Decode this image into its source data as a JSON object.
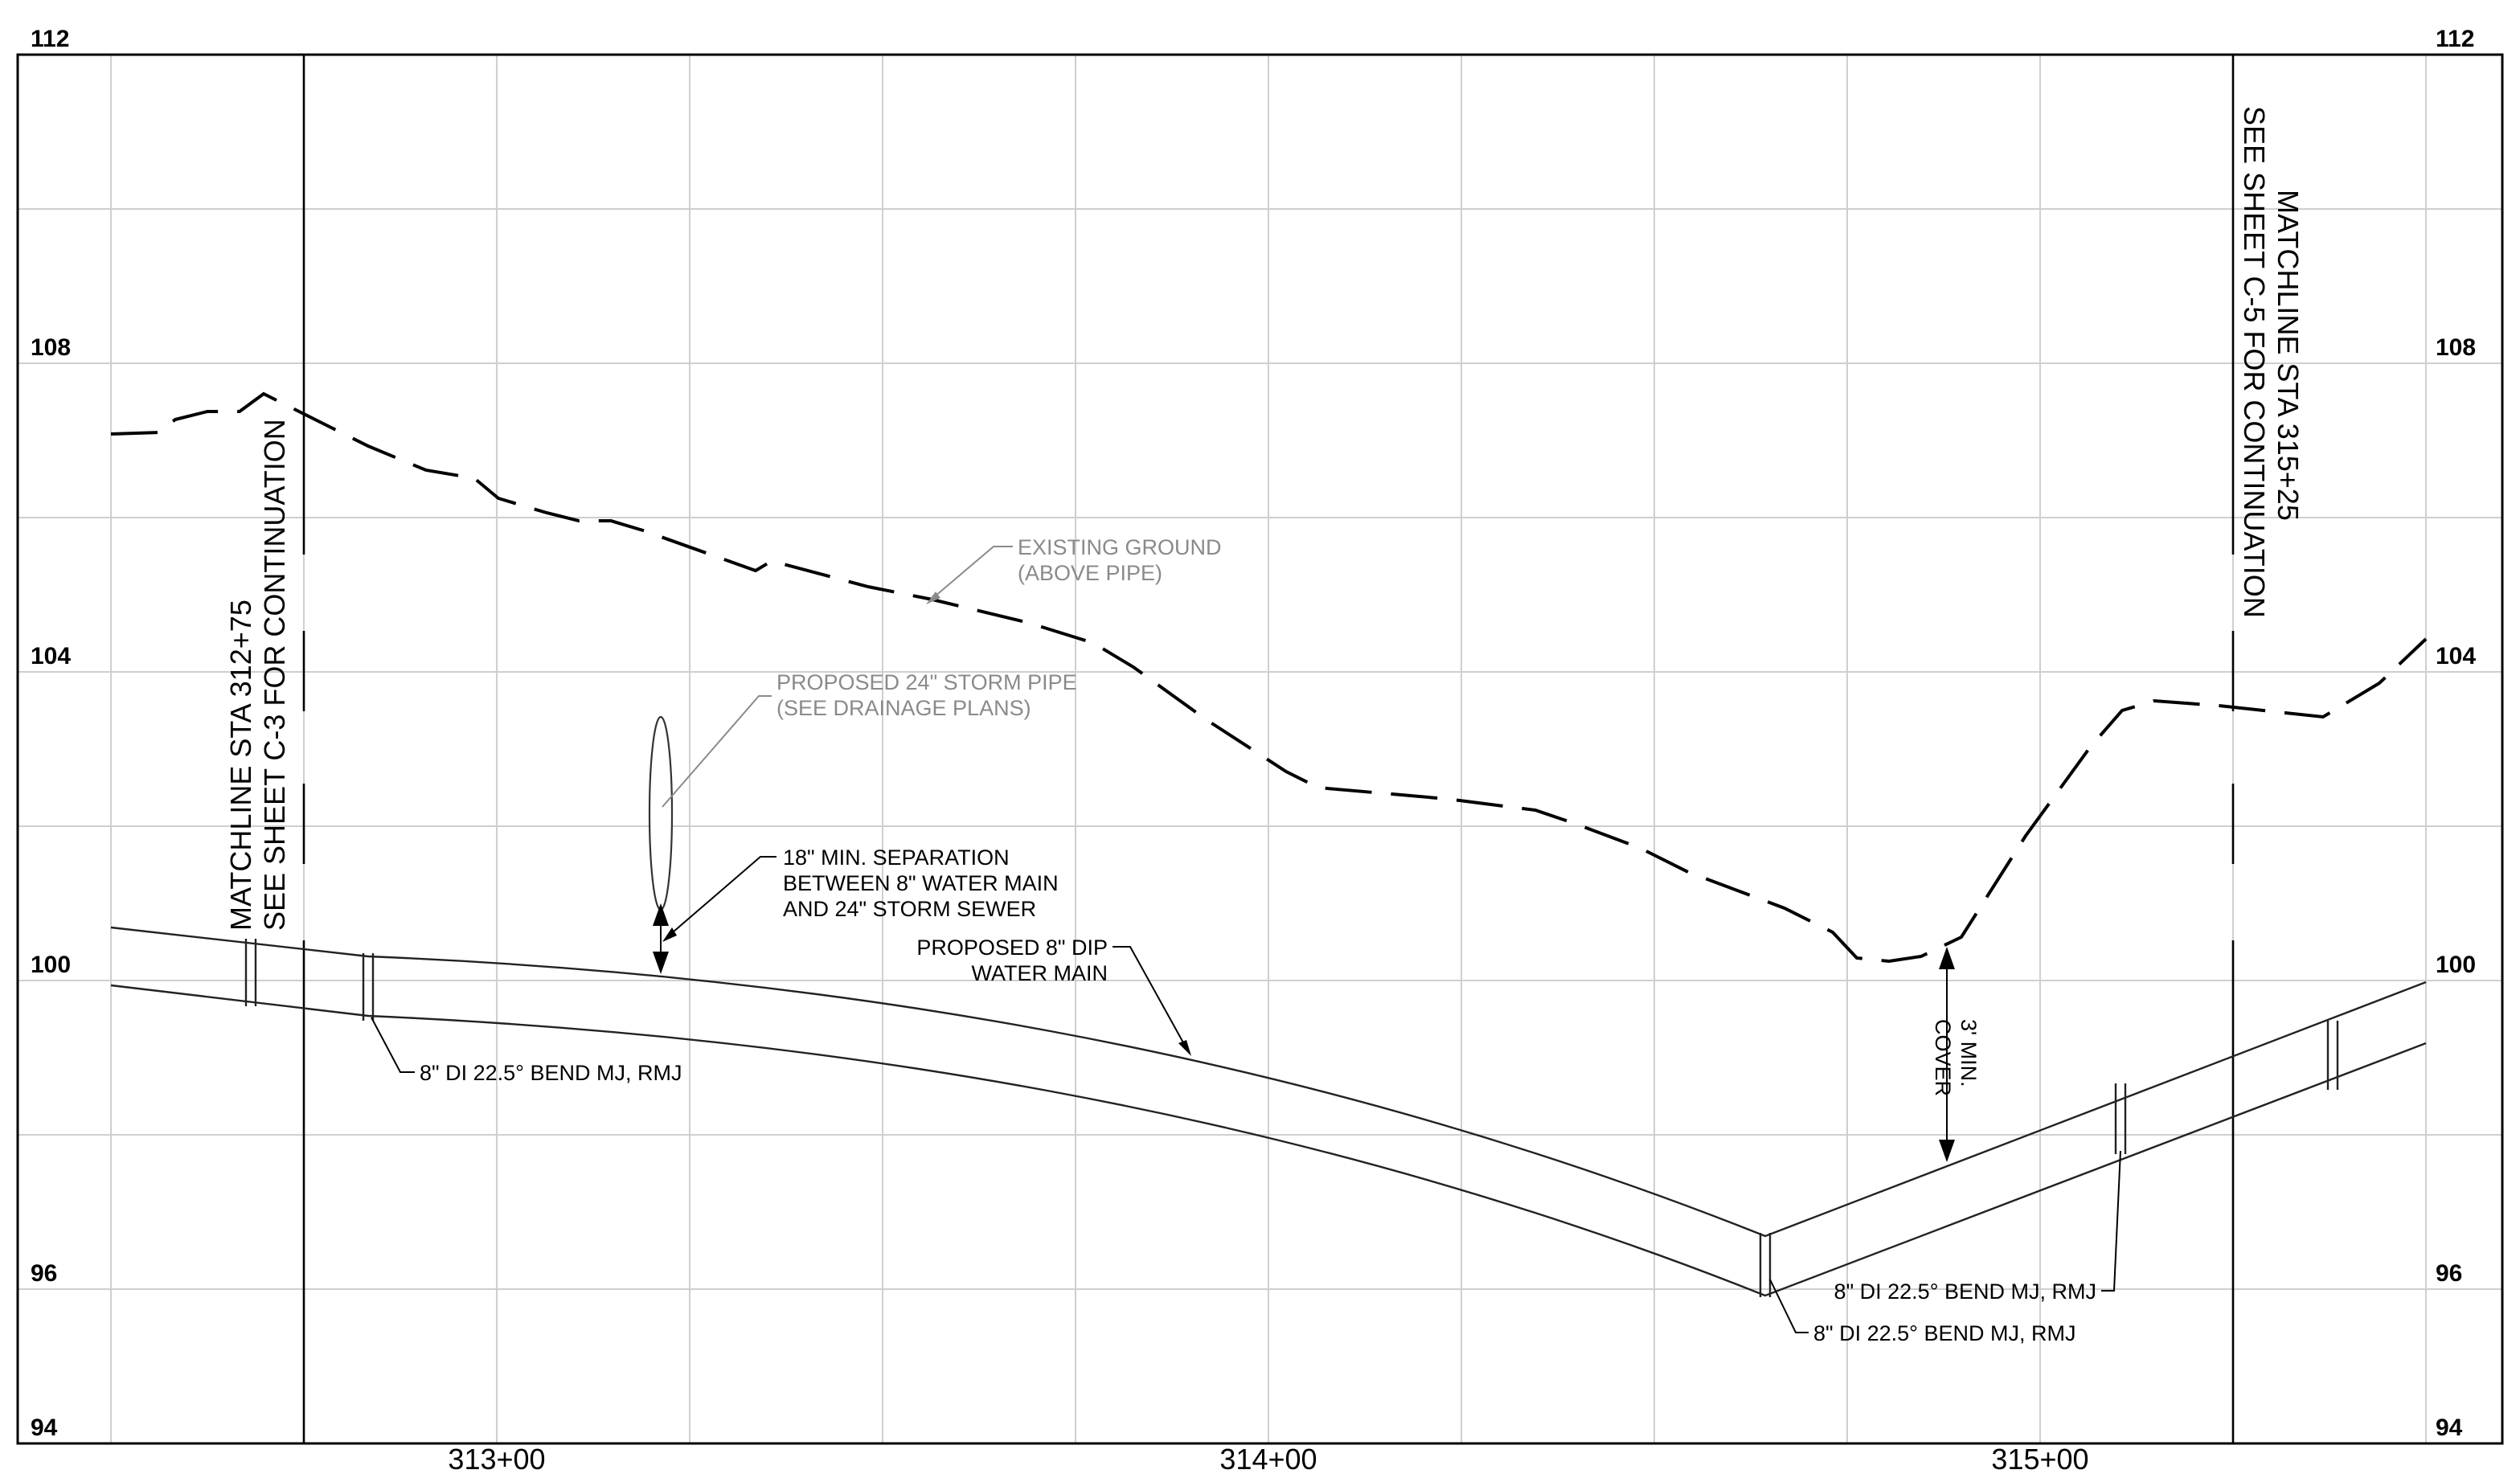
{
  "profile": {
    "elevation_labels_left": [
      "112",
      "108",
      "104",
      "100",
      "96",
      "94"
    ],
    "elevation_labels_right": [
      "112",
      "108",
      "104",
      "100",
      "96",
      "94"
    ],
    "station_labels": [
      "313+00",
      "314+00",
      "315+00"
    ],
    "matchline_left": {
      "line1": "MATCHLINE STA 312+75",
      "line2": "SEE SHEET C-3 FOR CONTINUATION"
    },
    "matchline_right": {
      "line1": "MATCHLINE STA 315+25",
      "line2": "SEE SHEET C-5 FOR CONTINUATION"
    },
    "notes": {
      "existing_ground": [
        "EXISTING GROUND",
        "(ABOVE PIPE)"
      ],
      "storm_pipe": [
        "PROPOSED 24\" STORM PIPE",
        "(SEE DRAINAGE PLANS)"
      ],
      "separation": [
        "18\" MIN. SEPARATION",
        "BETWEEN 8\" WATER MAIN",
        "AND 24\" STORM SEWER"
      ],
      "water_main": [
        "PROPOSED 8\" DIP",
        "WATER MAIN"
      ],
      "cover": [
        "3' MIN.",
        "COVER"
      ],
      "bend_1": "8\" DI 22.5° BEND MJ, RMJ",
      "bend_2": "8\" DI 22.5° BEND MJ, RMJ",
      "bend_3": "8\" DI 22.5° BEND MJ, RMJ"
    }
  }
}
